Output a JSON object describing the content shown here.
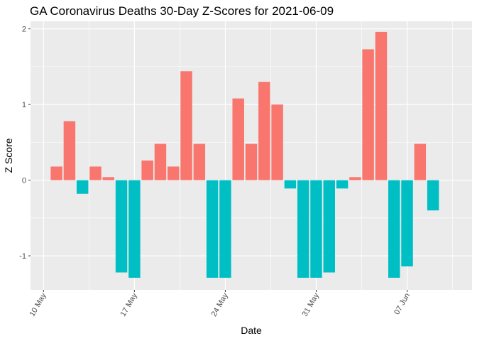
{
  "chart_data": {
    "type": "bar",
    "title": "GA Coronavirus Deaths 30-Day Z-Scores for 2021-06-09",
    "xlabel": "Date",
    "ylabel": "Z Score",
    "x_tick_labels": [
      "10 May",
      "17 May",
      "24 May",
      "31 May",
      "07 Jun"
    ],
    "x_tick_dates": [
      "2021-05-10",
      "2021-05-17",
      "2021-05-24",
      "2021-05-31",
      "2021-06-07"
    ],
    "y_ticks": [
      -1,
      0,
      1,
      2
    ],
    "xlim": [
      "2021-05-09",
      "2021-06-12"
    ],
    "ylim": [
      -1.45,
      2.1
    ],
    "grid": true,
    "legend": "none",
    "colors": {
      "positive": "#F8766D",
      "negative": "#00BFC4",
      "panel": "#EBEBEB",
      "grid": "#FFFFFF"
    },
    "x": [
      "2021-05-11",
      "2021-05-12",
      "2021-05-13",
      "2021-05-14",
      "2021-05-15",
      "2021-05-16",
      "2021-05-17",
      "2021-05-18",
      "2021-05-19",
      "2021-05-20",
      "2021-05-21",
      "2021-05-22",
      "2021-05-23",
      "2021-05-24",
      "2021-05-25",
      "2021-05-26",
      "2021-05-27",
      "2021-05-28",
      "2021-05-29",
      "2021-05-30",
      "2021-05-31",
      "2021-06-01",
      "2021-06-02",
      "2021-06-03",
      "2021-06-04",
      "2021-06-05",
      "2021-06-06",
      "2021-06-07",
      "2021-06-08",
      "2021-06-09"
    ],
    "values": [
      0.18,
      0.78,
      -0.18,
      0.18,
      0.04,
      -1.22,
      -1.29,
      0.26,
      0.48,
      0.18,
      1.44,
      0.48,
      -1.29,
      -1.29,
      1.08,
      0.48,
      1.3,
      1.0,
      -0.11,
      -1.29,
      -1.29,
      -1.22,
      -0.11,
      0.04,
      1.73,
      1.96,
      -1.29,
      -1.14,
      0.48,
      -0.4
    ]
  }
}
